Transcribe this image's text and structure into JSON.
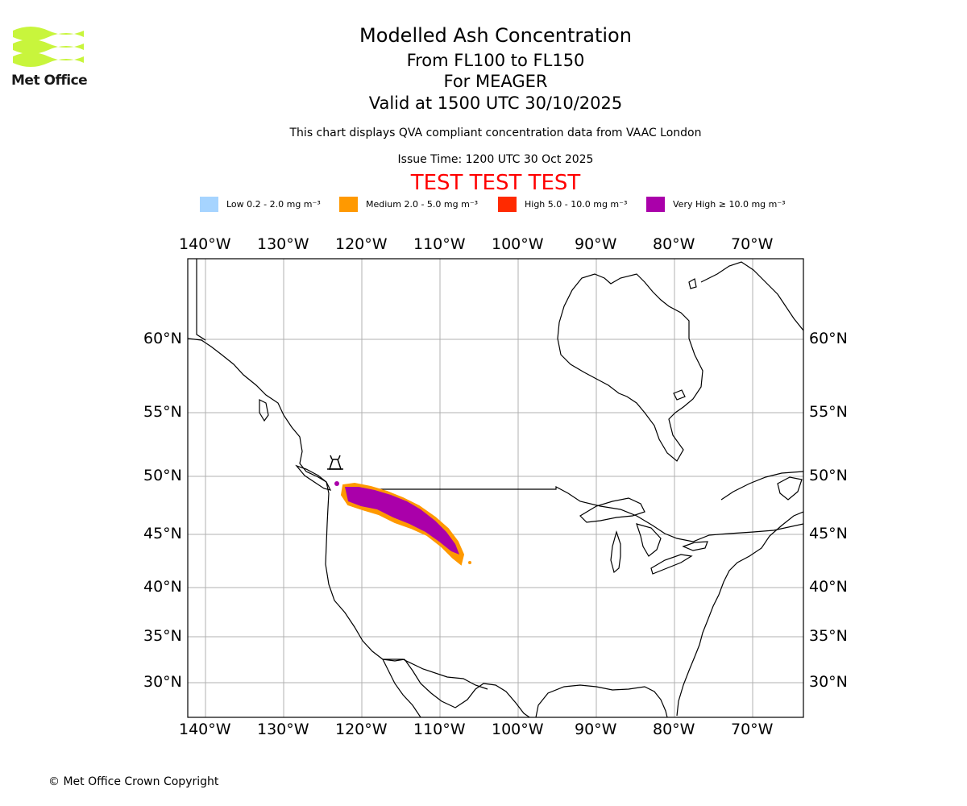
{
  "logo": {
    "text": "Met Office",
    "accent": "#c8f53c"
  },
  "header": {
    "title": "Modelled Ash Concentration",
    "levels": "From FL100 to FL150",
    "volcano": "For MEAGER",
    "valid": "Valid at 1500 UTC 30/10/2025",
    "note": "This chart displays QVA compliant concentration data from VAAC London",
    "issue": "Issue Time: 1200 UTC 30 Oct 2025",
    "test": "TEST TEST TEST"
  },
  "legend": [
    {
      "label": "Low 0.2 - 2.0 mg m⁻³",
      "color": "#a6d4ff"
    },
    {
      "label": "Medium 2.0 - 5.0 mg m⁻³",
      "color": "#ff9900"
    },
    {
      "label": "High 5.0 - 10.0 mg m⁻³",
      "color": "#ff2a00"
    },
    {
      "label": "Very High ≥ 10.0 mg m⁻³",
      "color": "#aa00aa"
    }
  ],
  "map": {
    "lon_ticks": [
      "140°W",
      "130°W",
      "120°W",
      "110°W",
      "100°W",
      "90°W",
      "80°W",
      "70°W"
    ],
    "lat_ticks": [
      "60°N",
      "55°N",
      "50°N",
      "45°N",
      "40°N",
      "35°N",
      "30°N"
    ],
    "volcano_lon": -123.5,
    "volcano_lat": 50.6,
    "plume_color": "#aa00aa",
    "plume_edge": "#ff9900"
  },
  "footer": {
    "copyright": "© Met Office Crown Copyright"
  }
}
